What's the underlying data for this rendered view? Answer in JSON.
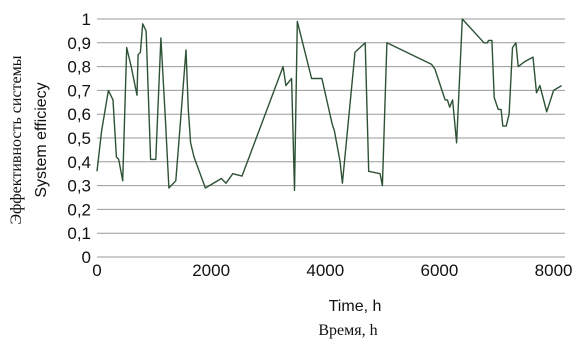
{
  "chart_data": {
    "type": "line",
    "xlabel_en": "Time, h",
    "xlabel_ru": "Время, h",
    "ylabel_ru": "Эффективность системы",
    "ylabel_en": "System efficiecy",
    "xlim": [
      0,
      8200
    ],
    "ylim": [
      0,
      1
    ],
    "x_ticks": [
      0,
      2000,
      4000,
      6000,
      8000
    ],
    "x_tick_labels": [
      "0",
      "2000",
      "4000",
      "6000",
      "8000"
    ],
    "y_ticks": [
      0,
      0.1,
      0.2,
      0.3,
      0.4,
      0.5,
      0.6,
      0.7,
      0.8,
      0.9,
      1
    ],
    "y_tick_labels": [
      "0",
      "0,1",
      "0,2",
      "0,3",
      "0,4",
      "0,5",
      "0,6",
      "0,7",
      "0,8",
      "0,9",
      "1"
    ],
    "grid": "horizontal",
    "color": "#2e5236",
    "series": [
      {
        "x": [
          0,
          80,
          200,
          280,
          340,
          380,
          450,
          520,
          600,
          650,
          700,
          720,
          760,
          800,
          860,
          940,
          1030,
          1120,
          1200,
          1260,
          1380,
          1460,
          1560,
          1600,
          1640,
          1700,
          1900,
          2180,
          2260,
          2380,
          2540,
          3260,
          3310,
          3410,
          3460,
          3510,
          3760,
          3940,
          4120,
          4160,
          4260,
          4300,
          4520,
          4700,
          4760,
          4960,
          5000,
          5080,
          5860,
          5920,
          6100,
          6140,
          6180,
          6230,
          6300,
          6400,
          6780,
          6840,
          6860,
          6920,
          6960,
          7030,
          7080,
          7110,
          7170,
          7220,
          7280,
          7340,
          7380,
          7490,
          7640,
          7700,
          7760,
          7880,
          8000,
          8140
        ],
        "y": [
          0.36,
          0.53,
          0.7,
          0.66,
          0.42,
          0.41,
          0.32,
          0.88,
          0.8,
          0.74,
          0.68,
          0.85,
          0.86,
          0.98,
          0.95,
          0.41,
          0.41,
          0.92,
          0.57,
          0.29,
          0.32,
          0.56,
          0.87,
          0.62,
          0.48,
          0.42,
          0.29,
          0.33,
          0.31,
          0.35,
          0.34,
          0.8,
          0.72,
          0.75,
          0.28,
          0.99,
          0.75,
          0.75,
          0.56,
          0.53,
          0.4,
          0.31,
          0.86,
          0.9,
          0.36,
          0.35,
          0.3,
          0.9,
          0.81,
          0.79,
          0.66,
          0.66,
          0.63,
          0.66,
          0.48,
          1.0,
          0.9,
          0.9,
          0.91,
          0.91,
          0.67,
          0.62,
          0.62,
          0.55,
          0.55,
          0.6,
          0.88,
          0.9,
          0.8,
          0.82,
          0.84,
          0.69,
          0.72,
          0.61,
          0.7,
          0.72
        ]
      }
    ]
  }
}
